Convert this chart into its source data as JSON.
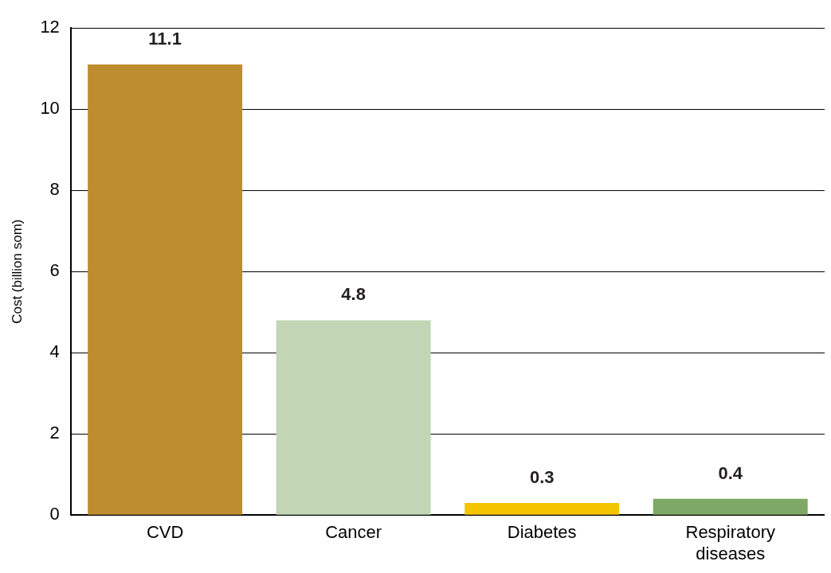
{
  "chart_data": {
    "type": "bar",
    "ylabel": "Cost (billion som)",
    "categories": [
      "CVD",
      "Cancer",
      "Diabetes",
      "Respiratory diseases"
    ],
    "values": [
      11.1,
      4.8,
      0.3,
      0.4
    ],
    "colors": [
      "#bc8c2f",
      "#c2d6b5",
      "#f5c400",
      "#7ea865"
    ],
    "ylim": [
      0,
      12
    ],
    "yticks": [
      0,
      2,
      4,
      6,
      8,
      10,
      12
    ],
    "grid": "y",
    "data_labels": true
  }
}
